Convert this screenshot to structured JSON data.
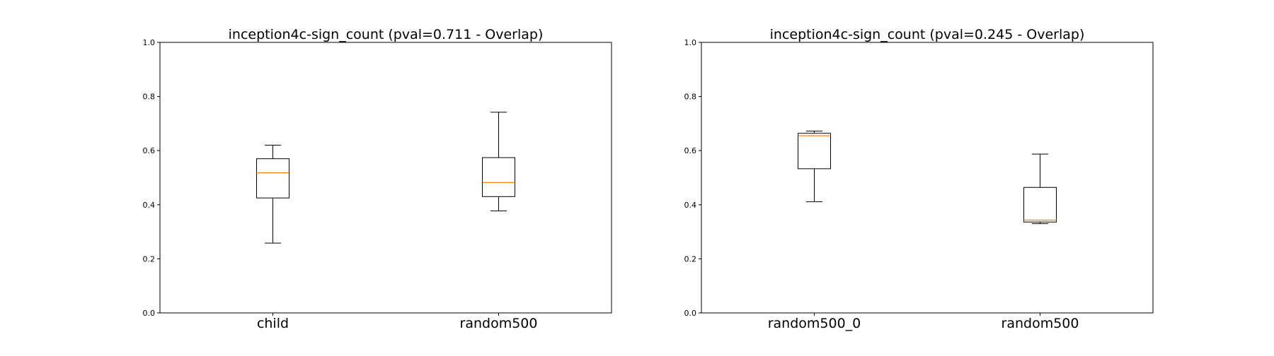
{
  "chart_data": [
    {
      "type": "box",
      "title": "inception4c-sign_count (pval=0.711 - Overlap)",
      "xlabel": "",
      "ylabel": "",
      "ylim": [
        0,
        1
      ],
      "yticks": [
        "0.0",
        "0.2",
        "0.4",
        "0.6",
        "0.8",
        "1.0"
      ],
      "categories": [
        "child",
        "random500"
      ],
      "boxes": [
        {
          "whisker_low": 0.258,
          "q1": 0.425,
          "median": 0.518,
          "q3": 0.57,
          "whisker_high": 0.62
        },
        {
          "whisker_low": 0.377,
          "q1": 0.43,
          "median": 0.482,
          "q3": 0.574,
          "whisker_high": 0.742
        }
      ],
      "grid": false,
      "colors": {
        "box": "#000000",
        "median": "#ff7f0e"
      }
    },
    {
      "type": "box",
      "title": "inception4c-sign_count (pval=0.245 - Overlap)",
      "xlabel": "",
      "ylabel": "",
      "ylim": [
        0,
        1
      ],
      "yticks": [
        "0.0",
        "0.2",
        "0.4",
        "0.6",
        "0.8",
        "1.0"
      ],
      "categories": [
        "random500_0",
        "random500"
      ],
      "boxes": [
        {
          "whisker_low": 0.411,
          "q1": 0.533,
          "median": 0.655,
          "q3": 0.664,
          "whisker_high": 0.672
        },
        {
          "whisker_low": 0.33,
          "q1": 0.336,
          "median": 0.343,
          "q3": 0.464,
          "whisker_high": 0.587
        }
      ],
      "grid": false,
      "colors": {
        "box": "#000000",
        "median": "#ff7f0e"
      }
    }
  ]
}
